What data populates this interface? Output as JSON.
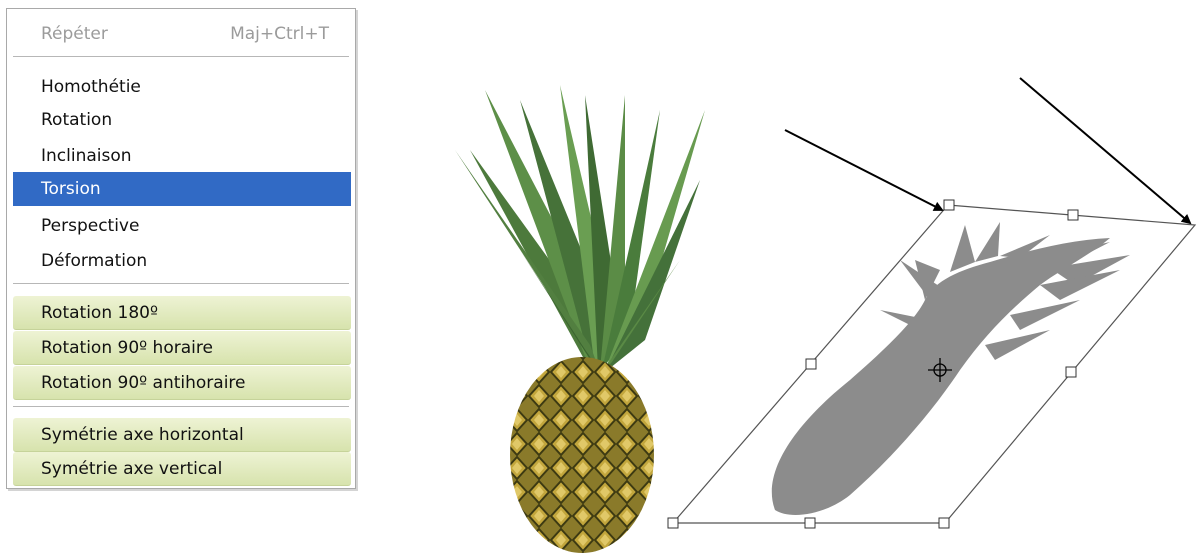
{
  "menu": {
    "repeat": {
      "label": "Répéter",
      "shortcut": "Maj+Ctrl+T"
    },
    "transform_items": [
      "Homothétie",
      "Rotation",
      "Inclinaison",
      "Torsion",
      "Perspective",
      "Déformation"
    ],
    "selected_item": "Torsion",
    "rotate_items": [
      "Rotation 180º",
      "Rotation 90º horaire",
      "Rotation 90º antihoraire"
    ],
    "flip_items": [
      "Symétrie axe horizontal",
      "Symétrie axe vertical"
    ]
  },
  "colors": {
    "selection": "#316ac5",
    "button_fill": "#dfe8b9",
    "shadow": "#8c8c8c"
  },
  "illustration": {
    "left_image": "pineapple",
    "right_image": "skewed pineapple shadow with transform bounding box",
    "annotations": "two arrows pointing at top corner handles"
  }
}
